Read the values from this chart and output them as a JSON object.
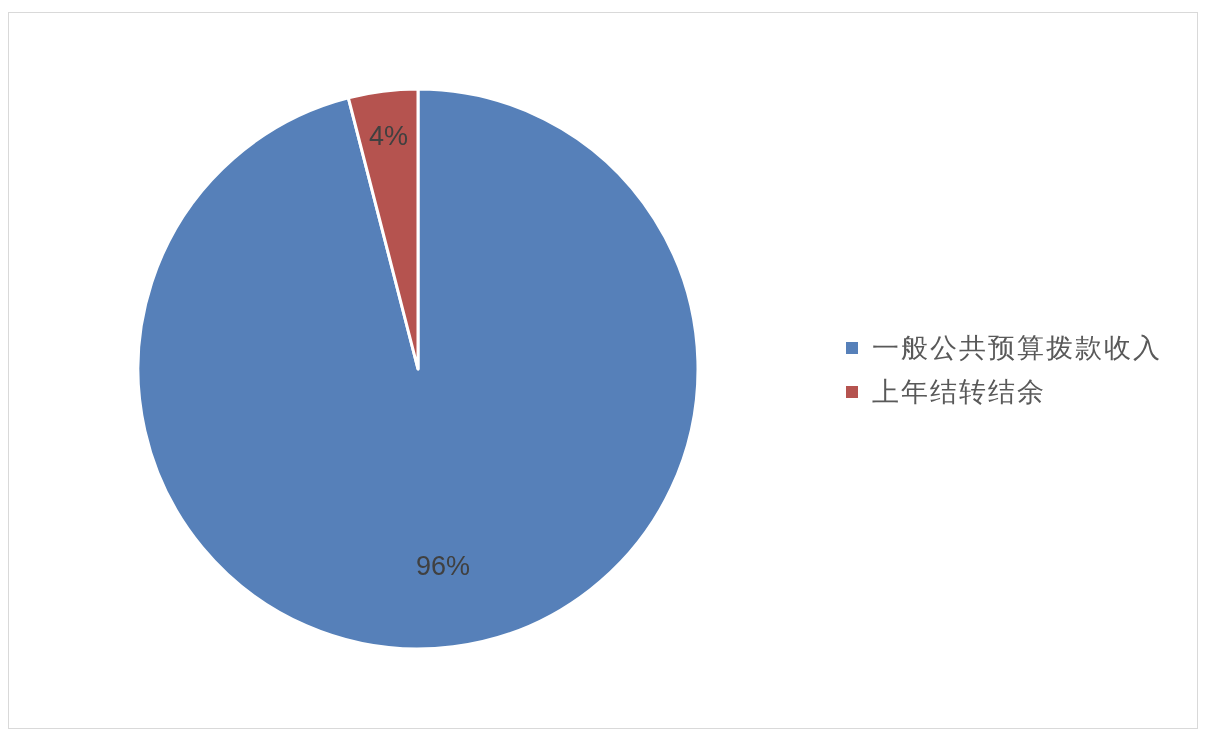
{
  "chart_data": {
    "type": "pie",
    "categories": [
      "一般公共预算拨款收入",
      "上年结转结余"
    ],
    "values": [
      96,
      4
    ],
    "colors": [
      "#5680b9",
      "#b5534f"
    ],
    "value_labels": [
      "96%",
      "4%"
    ],
    "legend": "right"
  }
}
